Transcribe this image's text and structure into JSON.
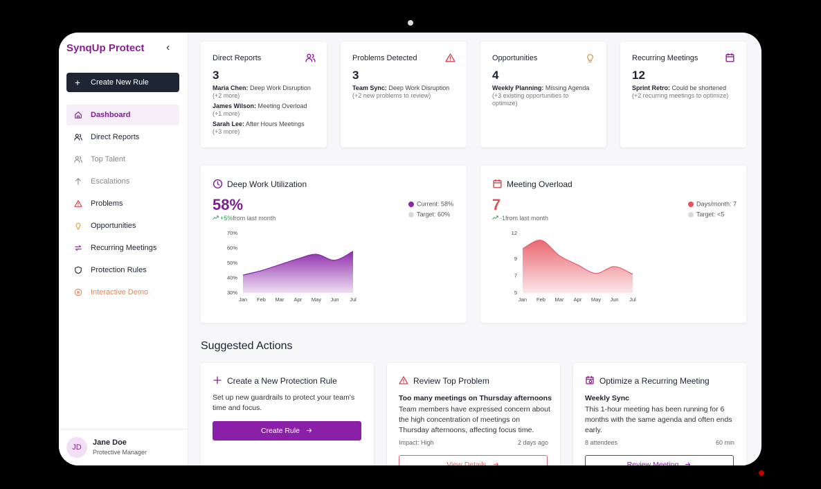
{
  "sidebar": {
    "brand": "SynqUp Protect",
    "collapse": "‹",
    "create_button": "Create New Rule",
    "nav": [
      "Dashboard",
      "Direct Reports",
      "Top Talent",
      "Escalations",
      "Problems",
      "Opportunities",
      "Recurring Meetings",
      "Protection Rules",
      "Interactive Demo"
    ],
    "user": {
      "initials": "JD",
      "name": "Jane Doe",
      "role": "Protective Manager"
    }
  },
  "stats": [
    {
      "title": "Direct Reports",
      "count": 3,
      "items": [
        {
          "label": "Maria Chen:",
          "detail": "Deep Work Disruption",
          "note": "(+2 more)"
        },
        {
          "label": "James Wilson:",
          "detail": "Meeting Overload",
          "note": "(+1 more)"
        },
        {
          "label": "Sarah Lee:",
          "detail": "After Hours Meetings",
          "note": "(+3 more)"
        }
      ]
    },
    {
      "title": "Problems Detected",
      "count": 3,
      "items": [
        {
          "label": "Team Sync:",
          "detail": "Deep Work Disruption",
          "note": "(+2 new problems to review)"
        }
      ]
    },
    {
      "title": "Opportunities",
      "count": 4,
      "items": [
        {
          "label": "Weekly Planning:",
          "detail": "Missing Agenda",
          "note": "(+3 existing opportunities to optimize)"
        }
      ]
    },
    {
      "title": "Recurring Meetings",
      "count": 12,
      "items": [
        {
          "label": "Sprint Retro:",
          "detail": "Could be shortened",
          "note": "(+2 recurring meetings to optimize)"
        }
      ]
    }
  ],
  "panels": [
    {
      "title": "Deep Work Utilization",
      "value": "58%",
      "change": "+5%",
      "change_suffix": "from last month",
      "legend": [
        {
          "label": "Current: 58%",
          "color": "#8a24a8"
        },
        {
          "label": "Target: 60%",
          "color": "#d9d9d9"
        }
      ],
      "chart": {
        "type": "area",
        "color": "#8a24a8",
        "categories": [
          "Jan",
          "Feb",
          "Mar",
          "Apr",
          "May",
          "Jun",
          "Jul"
        ],
        "values": [
          42,
          45,
          49,
          53,
          56,
          52,
          58
        ],
        "ylim": [
          30,
          70
        ],
        "yticks": [
          {
            "value": 30,
            "label": "30%"
          },
          {
            "value": 40,
            "label": "40%"
          },
          {
            "value": 50,
            "label": "50%"
          },
          {
            "value": 60,
            "label": "60%"
          },
          {
            "value": 70,
            "label": "70%"
          }
        ]
      }
    },
    {
      "title": "Meeting Overload",
      "value": "7",
      "change": "-1",
      "change_suffix": "from last month",
      "legend": [
        {
          "label": "Days/month: 7",
          "color": "#e8525c"
        },
        {
          "label": "Target: <5",
          "color": "#d9d9d9"
        }
      ],
      "chart": {
        "type": "area",
        "color": "#e8606a",
        "categories": [
          "Jan",
          "Feb",
          "Mar",
          "Apr",
          "May",
          "Jun",
          "Jul"
        ],
        "values": [
          10.2,
          11.2,
          9.4,
          8.3,
          7.3,
          8.1,
          7.2
        ],
        "ylim": [
          5,
          12
        ],
        "yticks": [
          5,
          7,
          9,
          12
        ]
      }
    }
  ],
  "suggested": {
    "heading": "Suggested Actions",
    "cards": [
      {
        "title": "Create a New Protection Rule",
        "body": "Set up new guardrails to protect your team's time and focus.",
        "button": "Create Rule"
      },
      {
        "title": "Review Top Problem",
        "subtitle": "Too many meetings on Thursday afternoons",
        "body": "Team members have expressed concern about the high concentration of meetings on Thursday afternoons, affecting focus time.",
        "meta_left": "Impact: High",
        "meta_right": "2 days ago",
        "button": "View Details"
      },
      {
        "title": "Optimize a Recurring Meeting",
        "subtitle": "Weekly Sync",
        "body": "This 1-hour meeting has been running for 6 months with the same agenda and often ends early.",
        "meta_left": "8 attendees",
        "meta_right": "60 min",
        "button": "Review Meeting"
      }
    ]
  }
}
